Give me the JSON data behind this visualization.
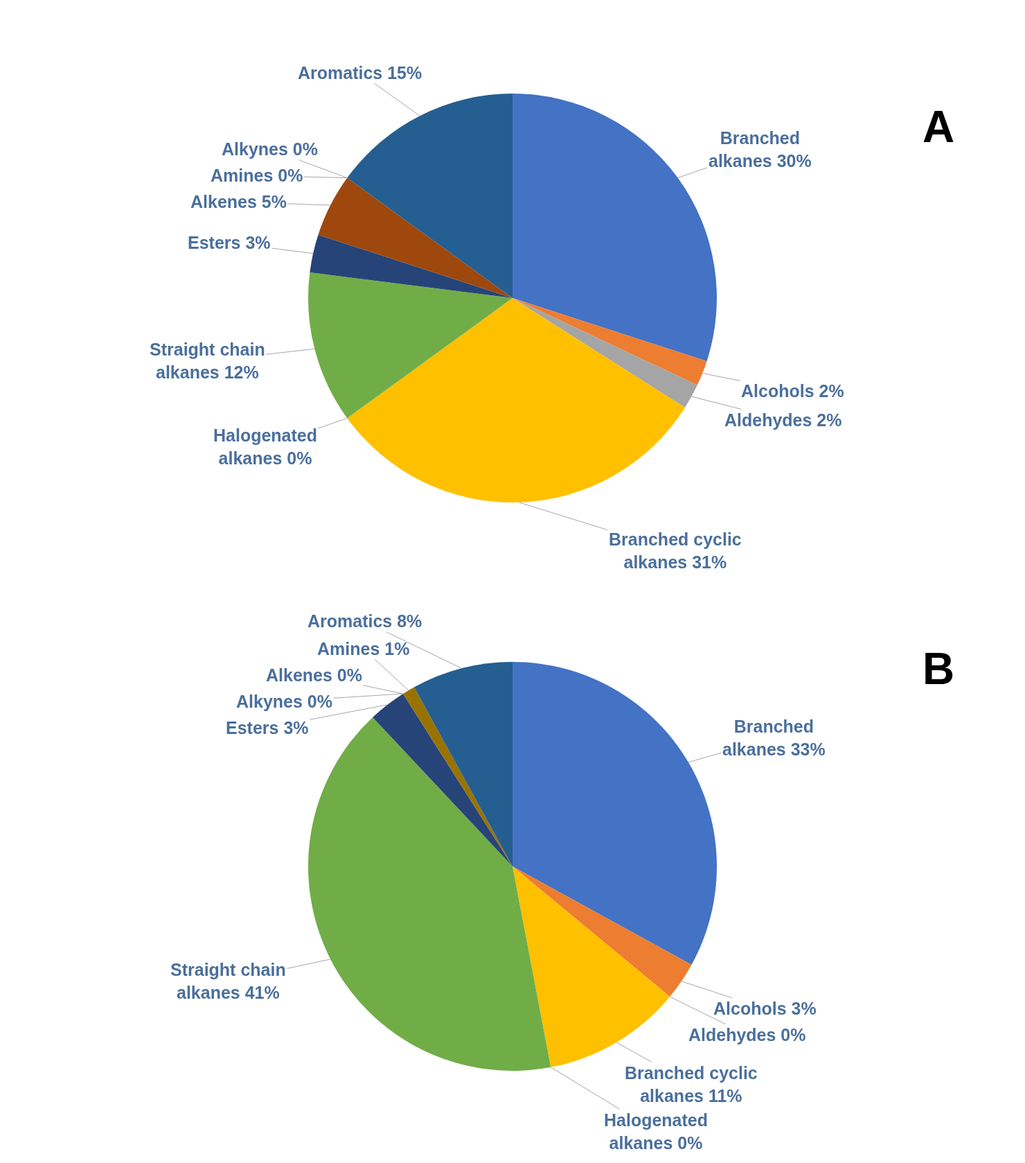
{
  "chart_data": [
    {
      "type": "pie",
      "title": "A",
      "categories": [
        "Branched alkanes",
        "Alcohols",
        "Aldehydes",
        "Branched cyclic alkanes",
        "Halogenated alkanes",
        "Straight chain alkanes",
        "Esters",
        "Alkenes",
        "Alkynes",
        "Amines",
        "Aromatics"
      ],
      "values": [
        30,
        2,
        2,
        31,
        0,
        12,
        3,
        5,
        0,
        0,
        15
      ],
      "value_labels": [
        "30%",
        "2%",
        "2%",
        "31%",
        "0%",
        "12%",
        "3%",
        "5%",
        "0%",
        "0%",
        "15%"
      ],
      "colors": [
        "#4472c4",
        "#ed7d31",
        "#a5a5a5",
        "#ffc000",
        "#5b9bd5",
        "#70ad47",
        "#264478",
        "#9e480e",
        "#636363",
        "#997300",
        "#255e91"
      ]
    },
    {
      "type": "pie",
      "title": "B",
      "categories": [
        "Branched alkanes",
        "Alcohols",
        "Aldehydes",
        "Branched cyclic alkanes",
        "Halogenated alkanes",
        "Straight chain alkanes",
        "Esters",
        "Alkenes",
        "Alkynes",
        "Amines",
        "Aromatics"
      ],
      "values": [
        33,
        3,
        0,
        11,
        0,
        41,
        3,
        0,
        0,
        1,
        8
      ],
      "value_labels": [
        "33%",
        "3%",
        "0%",
        "11%",
        "0%",
        "41%",
        "3%",
        "0%",
        "0%",
        "1%",
        "8%"
      ],
      "colors": [
        "#4472c4",
        "#ed7d31",
        "#a5a5a5",
        "#ffc000",
        "#5b9bd5",
        "#70ad47",
        "#264478",
        "#9e480e",
        "#636363",
        "#997300",
        "#255e91"
      ]
    }
  ]
}
